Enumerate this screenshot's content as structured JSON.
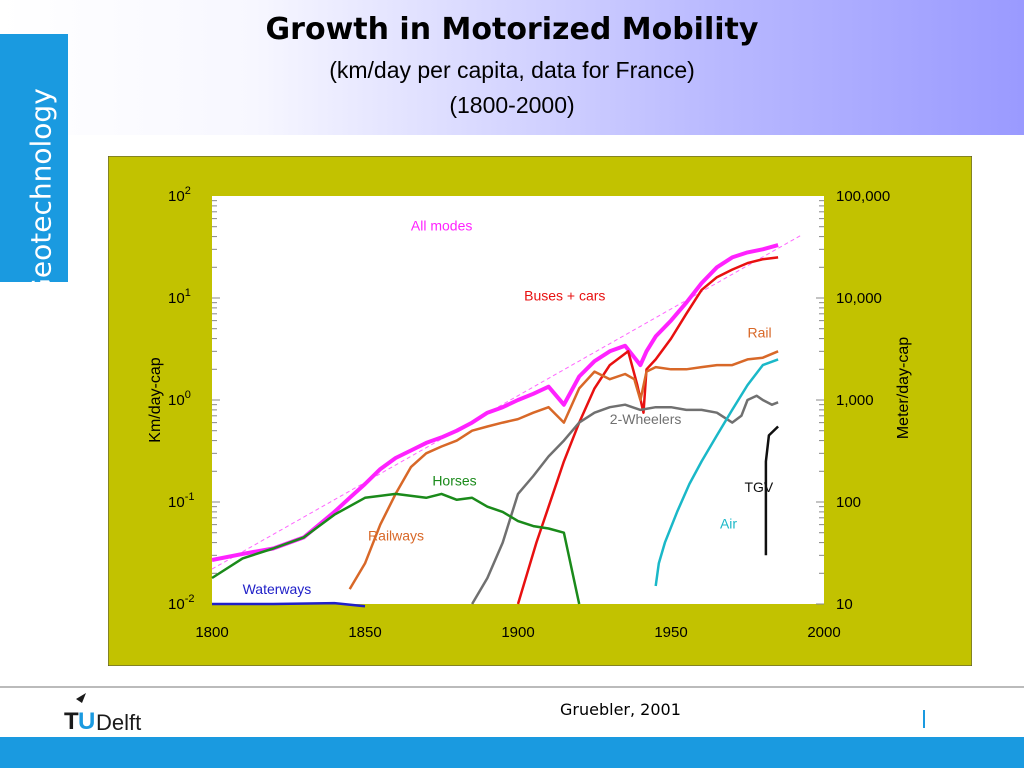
{
  "header": {
    "title": "Growth in Motorized Mobility",
    "subtitle_line1": "(km/day per capita, data for France)",
    "subtitle_line2": "(1800-2000)"
  },
  "side_tab": {
    "label": "Geotechnology"
  },
  "footer": {
    "credit": "Gruebler, 2001",
    "logo_text": "Delft",
    "logo_letters": "TU"
  },
  "colors": {
    "panel_bg": "#c2c200",
    "plot_bg": "#ffffff",
    "side_tab": "#1a9ae0",
    "footer_bar": "#1a9ae0",
    "trend_line": "#ff66ff"
  },
  "chart_data": {
    "type": "line",
    "y_scale": "log",
    "xlim": [
      1800,
      2000
    ],
    "ylim": [
      0.01,
      100
    ],
    "x_ticks": [
      "1800",
      "1850",
      "1900",
      "1950",
      "2000"
    ],
    "ylabel_left": "Km/day-cap",
    "ylabel_right": "Meter/day-cap",
    "y_ticks_left": [
      {
        "value": 100,
        "base": "10",
        "exp": "2"
      },
      {
        "value": 10,
        "base": "10",
        "exp": "1"
      },
      {
        "value": 1,
        "base": "10",
        "exp": "0"
      },
      {
        "value": 0.1,
        "base": "10",
        "exp": "-1"
      },
      {
        "value": 0.01,
        "base": "10",
        "exp": "-2"
      }
    ],
    "y_ticks_right": [
      {
        "value": 100,
        "label": "100,000"
      },
      {
        "value": 10,
        "label": "10,000"
      },
      {
        "value": 1,
        "label": "1,000"
      },
      {
        "value": 0.1,
        "label": "100"
      },
      {
        "value": 0.01,
        "label": "10"
      }
    ],
    "grid": false,
    "trend_line": [
      [
        1800,
        0.022
      ],
      [
        1993,
        42
      ]
    ],
    "series": [
      {
        "name": "All modes",
        "color": "#ff22ff",
        "width": 4,
        "label_at": [
          1800,
          0.01
        ],
        "label_year": 1865,
        "label_value": 46,
        "points": [
          [
            1800,
            0.027
          ],
          [
            1810,
            0.031
          ],
          [
            1820,
            0.035
          ],
          [
            1830,
            0.045
          ],
          [
            1835,
            0.06
          ],
          [
            1840,
            0.08
          ],
          [
            1845,
            0.11
          ],
          [
            1850,
            0.15
          ],
          [
            1855,
            0.21
          ],
          [
            1860,
            0.27
          ],
          [
            1865,
            0.32
          ],
          [
            1870,
            0.38
          ],
          [
            1875,
            0.43
          ],
          [
            1880,
            0.5
          ],
          [
            1885,
            0.6
          ],
          [
            1890,
            0.75
          ],
          [
            1895,
            0.85
          ],
          [
            1900,
            1.0
          ],
          [
            1905,
            1.15
          ],
          [
            1910,
            1.35
          ],
          [
            1915,
            0.9
          ],
          [
            1920,
            1.7
          ],
          [
            1925,
            2.4
          ],
          [
            1930,
            3.0
          ],
          [
            1935,
            3.4
          ],
          [
            1940,
            2.2
          ],
          [
            1942,
            3.0
          ],
          [
            1945,
            4.2
          ],
          [
            1950,
            6.0
          ],
          [
            1955,
            9.0
          ],
          [
            1960,
            14
          ],
          [
            1965,
            20
          ],
          [
            1970,
            25
          ],
          [
            1975,
            28
          ],
          [
            1980,
            30
          ],
          [
            1985,
            33
          ]
        ]
      },
      {
        "name": "Buses + cars",
        "color": "#e81010",
        "width": 2.5,
        "label_year": 1902,
        "label_value": 9.4,
        "points": [
          [
            1900,
            0.01
          ],
          [
            1903,
            0.02
          ],
          [
            1906,
            0.04
          ],
          [
            1910,
            0.09
          ],
          [
            1915,
            0.25
          ],
          [
            1920,
            0.6
          ],
          [
            1925,
            1.3
          ],
          [
            1930,
            2.2
          ],
          [
            1936,
            3.0
          ],
          [
            1939,
            1.4
          ],
          [
            1941,
            0.75
          ],
          [
            1942,
            2.0
          ],
          [
            1945,
            2.5
          ],
          [
            1950,
            4.0
          ],
          [
            1955,
            7.0
          ],
          [
            1960,
            12
          ],
          [
            1965,
            16
          ],
          [
            1970,
            19
          ],
          [
            1975,
            22
          ],
          [
            1980,
            24
          ],
          [
            1985,
            25
          ]
        ]
      },
      {
        "name": "Rail",
        "color": "#d86828",
        "width": 2.5,
        "label_year": 1975,
        "label_value": 4.1,
        "points": [
          [
            1845,
            0.014
          ],
          [
            1850,
            0.025
          ],
          [
            1855,
            0.06
          ],
          [
            1860,
            0.12
          ],
          [
            1865,
            0.22
          ],
          [
            1870,
            0.3
          ],
          [
            1875,
            0.35
          ],
          [
            1880,
            0.4
          ],
          [
            1885,
            0.5
          ],
          [
            1890,
            0.55
          ],
          [
            1895,
            0.6
          ],
          [
            1900,
            0.65
          ],
          [
            1905,
            0.75
          ],
          [
            1910,
            0.85
          ],
          [
            1915,
            0.6
          ],
          [
            1920,
            1.3
          ],
          [
            1925,
            1.9
          ],
          [
            1930,
            1.6
          ],
          [
            1935,
            1.8
          ],
          [
            1938,
            1.6
          ],
          [
            1940,
            1.0
          ],
          [
            1942,
            1.9
          ],
          [
            1945,
            2.1
          ],
          [
            1950,
            2.0
          ],
          [
            1955,
            2.0
          ],
          [
            1960,
            2.1
          ],
          [
            1965,
            2.2
          ],
          [
            1970,
            2.2
          ],
          [
            1975,
            2.5
          ],
          [
            1980,
            2.6
          ],
          [
            1985,
            3.0
          ]
        ]
      },
      {
        "name": "2-Wheelers",
        "color": "#707070",
        "width": 2.5,
        "label_year": 1930,
        "label_value": 0.58,
        "points": [
          [
            1885,
            0.01
          ],
          [
            1890,
            0.018
          ],
          [
            1895,
            0.04
          ],
          [
            1900,
            0.12
          ],
          [
            1905,
            0.18
          ],
          [
            1910,
            0.28
          ],
          [
            1915,
            0.4
          ],
          [
            1920,
            0.6
          ],
          [
            1925,
            0.75
          ],
          [
            1930,
            0.85
          ],
          [
            1935,
            0.9
          ],
          [
            1940,
            0.8
          ],
          [
            1945,
            0.85
          ],
          [
            1950,
            0.85
          ],
          [
            1955,
            0.8
          ],
          [
            1960,
            0.8
          ],
          [
            1965,
            0.75
          ],
          [
            1970,
            0.6
          ],
          [
            1973,
            0.7
          ],
          [
            1975,
            1.0
          ],
          [
            1978,
            1.1
          ],
          [
            1980,
            1.0
          ],
          [
            1983,
            0.9
          ],
          [
            1985,
            0.95
          ]
        ]
      },
      {
        "name": "Horses",
        "color": "#1a8a1a",
        "width": 2.5,
        "label_year": 1872,
        "label_value": 0.145,
        "points": [
          [
            1800,
            0.018
          ],
          [
            1810,
            0.028
          ],
          [
            1820,
            0.035
          ],
          [
            1830,
            0.045
          ],
          [
            1840,
            0.075
          ],
          [
            1850,
            0.11
          ],
          [
            1860,
            0.12
          ],
          [
            1870,
            0.11
          ],
          [
            1875,
            0.12
          ],
          [
            1880,
            0.105
          ],
          [
            1885,
            0.11
          ],
          [
            1890,
            0.09
          ],
          [
            1895,
            0.08
          ],
          [
            1900,
            0.065
          ],
          [
            1905,
            0.058
          ],
          [
            1910,
            0.055
          ],
          [
            1915,
            0.05
          ],
          [
            1920,
            0.01
          ]
        ]
      },
      {
        "name": "Railways",
        "color": "#d86828",
        "width": 0,
        "label_year": 1851,
        "label_value": 0.042,
        "points": []
      },
      {
        "name": "Air",
        "color": "#1ab8c8",
        "width": 2.5,
        "label_year": 1966,
        "label_value": 0.055,
        "points": [
          [
            1945,
            0.015
          ],
          [
            1946,
            0.025
          ],
          [
            1948,
            0.04
          ],
          [
            1952,
            0.08
          ],
          [
            1956,
            0.15
          ],
          [
            1960,
            0.25
          ],
          [
            1965,
            0.45
          ],
          [
            1970,
            0.8
          ],
          [
            1975,
            1.4
          ],
          [
            1980,
            2.2
          ],
          [
            1985,
            2.5
          ]
        ]
      },
      {
        "name": "TGV",
        "color": "#101010",
        "width": 2.5,
        "label_year": 1974,
        "label_value": 0.125,
        "points": [
          [
            1981,
            0.03
          ],
          [
            1981,
            0.25
          ],
          [
            1982,
            0.45
          ],
          [
            1985,
            0.55
          ]
        ]
      },
      {
        "name": "Waterways",
        "color": "#2020c8",
        "width": 2.5,
        "label_year": 1810,
        "label_value": 0.0125,
        "points": [
          [
            1800,
            0.01
          ],
          [
            1810,
            0.01
          ],
          [
            1820,
            0.01
          ],
          [
            1840,
            0.0102
          ],
          [
            1850,
            0.0095
          ]
        ]
      }
    ]
  }
}
